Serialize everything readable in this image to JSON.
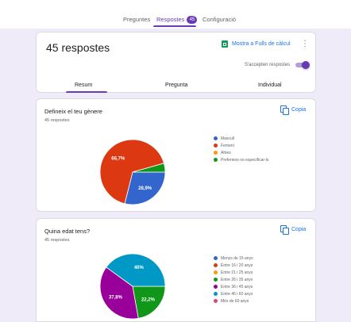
{
  "header": {
    "tabs": [
      {
        "label": "Preguntes"
      },
      {
        "label": "Respostes",
        "badge": "45"
      },
      {
        "label": "Configuració"
      }
    ]
  },
  "summary_card": {
    "title": "45 respostes",
    "sheets_link": "Mostra a Fulls de càlcul",
    "accepting_label": "S'accepten respostes",
    "accepting": true,
    "subtabs": [
      "Resum",
      "Pregunta",
      "Individual"
    ]
  },
  "questions": [
    {
      "title": "Defineix el teu gènere",
      "count": "45 respostes",
      "copy_label": "Copia"
    },
    {
      "title": "Quina edat tens?",
      "count": "45 respostes",
      "copy_label": "Copia"
    }
  ],
  "chart_data": [
    {
      "type": "pie",
      "categories": [
        "Masculí",
        "Femení",
        "Altres",
        "Prefereixo no especificar-lo"
      ],
      "values": [
        28.9,
        66.7,
        0,
        4.4
      ],
      "labels": [
        "28,9%",
        "66,7%",
        "",
        ""
      ],
      "colors": [
        "#3366cc",
        "#dc3912",
        "#ff9900",
        "#109618"
      ]
    },
    {
      "type": "pie",
      "categories": [
        "Menys de 15 anys",
        "Entre 16 i 20 anys",
        "Entre 21 i 25 anys",
        "Entre 26 i 35 anys",
        "Entre 36 i 45 anys",
        "Entre 46 i 60 anys",
        "Més de 60 anys"
      ],
      "values": [
        0,
        0,
        0,
        22.2,
        37.8,
        40,
        0
      ],
      "labels": [
        "",
        "",
        "",
        "22,2%",
        "37,8%",
        "40%",
        ""
      ],
      "colors": [
        "#3366cc",
        "#dc3912",
        "#ff9900",
        "#109618",
        "#990099",
        "#0099c6",
        "#dd4477"
      ]
    }
  ]
}
